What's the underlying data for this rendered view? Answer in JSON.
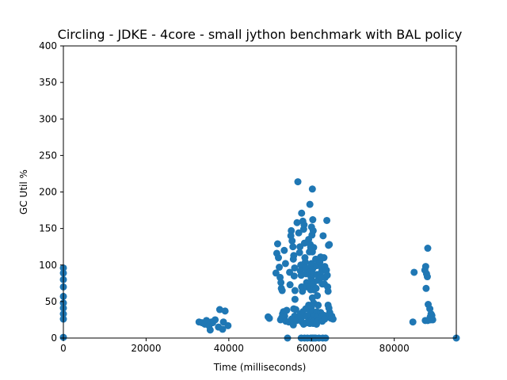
{
  "chart_data": {
    "type": "scatter",
    "title": "Circling - JDKE - 4core -  small jython benchmark with BAL policy",
    "xlabel": "Time (milliseconds)",
    "ylabel": "GC Util %",
    "xlim": [
      0,
      95000
    ],
    "ylim": [
      0,
      400
    ],
    "xticks": [
      0,
      20000,
      40000,
      60000,
      80000
    ],
    "yticks": [
      0,
      50,
      100,
      150,
      200,
      250,
      300,
      350,
      400
    ],
    "grid": false,
    "legend": "none",
    "colors": {
      "points": "#1f77b4",
      "axes": "#000000",
      "background": "#ffffff"
    },
    "series": [
      {
        "points": [
          [
            0,
            96
          ],
          [
            0,
            89
          ],
          [
            0,
            80
          ],
          [
            0,
            70
          ],
          [
            0,
            57
          ],
          [
            0,
            48
          ],
          [
            0,
            41
          ],
          [
            0,
            33
          ],
          [
            0,
            26
          ],
          [
            0,
            1
          ],
          [
            32800,
            22
          ],
          [
            33500,
            21
          ],
          [
            34200,
            19
          ],
          [
            34600,
            24
          ],
          [
            35200,
            17
          ],
          [
            35500,
            11
          ],
          [
            35800,
            22
          ],
          [
            36100,
            21
          ],
          [
            36700,
            25
          ],
          [
            37500,
            15
          ],
          [
            37800,
            39
          ],
          [
            38500,
            12
          ],
          [
            38700,
            22
          ],
          [
            39100,
            37
          ],
          [
            39800,
            17
          ],
          [
            49500,
            29
          ],
          [
            49800,
            27
          ],
          [
            51400,
            89
          ],
          [
            51600,
            116
          ],
          [
            51800,
            129
          ],
          [
            52000,
            110
          ],
          [
            52200,
            97
          ],
          [
            52400,
            83
          ],
          [
            52600,
            76
          ],
          [
            52700,
            68
          ],
          [
            52900,
            65
          ],
          [
            52500,
            25
          ],
          [
            52800,
            28
          ],
          [
            53000,
            33
          ],
          [
            53400,
            120
          ],
          [
            53700,
            102
          ],
          [
            53200,
            36
          ],
          [
            53500,
            30
          ],
          [
            53800,
            23
          ],
          [
            54000,
            38
          ],
          [
            54200,
            0
          ],
          [
            54500,
            22
          ],
          [
            54700,
            90
          ],
          [
            54800,
            73
          ],
          [
            55000,
            140
          ],
          [
            55100,
            147
          ],
          [
            55300,
            133
          ],
          [
            55500,
            125
          ],
          [
            55700,
            113
          ],
          [
            55600,
            108
          ],
          [
            55800,
            85
          ],
          [
            55900,
            96
          ],
          [
            56000,
            65
          ],
          [
            55700,
            40
          ],
          [
            55900,
            30
          ],
          [
            55400,
            22
          ],
          [
            55200,
            26
          ],
          [
            55600,
            18
          ],
          [
            56000,
            53
          ],
          [
            56200,
            39
          ],
          [
            56400,
            24
          ],
          [
            56700,
            214
          ],
          [
            56500,
            158
          ],
          [
            56900,
            144
          ],
          [
            57200,
            125
          ],
          [
            57100,
            117
          ],
          [
            57400,
            100
          ],
          [
            57300,
            92
          ],
          [
            57500,
            86
          ],
          [
            57600,
            70
          ],
          [
            57800,
            64
          ],
          [
            57300,
            33
          ],
          [
            57500,
            28
          ],
          [
            57700,
            22
          ],
          [
            57900,
            36
          ],
          [
            58100,
            19
          ],
          [
            57600,
            171
          ],
          [
            57900,
            160
          ],
          [
            58200,
            155
          ],
          [
            58100,
            149
          ],
          [
            58300,
            130
          ],
          [
            58400,
            110
          ],
          [
            58500,
            104
          ],
          [
            58600,
            96
          ],
          [
            58700,
            88
          ],
          [
            58800,
            76
          ],
          [
            58900,
            70
          ],
          [
            58600,
            40
          ],
          [
            58800,
            30
          ],
          [
            58900,
            21
          ],
          [
            57500,
            0
          ],
          [
            58300,
            0
          ],
          [
            59000,
            0
          ],
          [
            59600,
            183
          ],
          [
            59300,
            135
          ],
          [
            59500,
            118
          ],
          [
            59700,
            128
          ],
          [
            59800,
            124
          ],
          [
            59400,
            96
          ],
          [
            59600,
            90
          ],
          [
            59900,
            83
          ],
          [
            59500,
            70
          ],
          [
            59800,
            66
          ],
          [
            59300,
            45
          ],
          [
            59500,
            38
          ],
          [
            59700,
            31
          ],
          [
            59900,
            25
          ],
          [
            59600,
            20
          ],
          [
            60200,
            204
          ],
          [
            60000,
            152
          ],
          [
            60100,
            141
          ],
          [
            60300,
            162
          ],
          [
            60400,
            147
          ],
          [
            60500,
            124
          ],
          [
            60200,
            118
          ],
          [
            60000,
            102
          ],
          [
            60300,
            95
          ],
          [
            60500,
            87
          ],
          [
            60100,
            78
          ],
          [
            60400,
            74
          ],
          [
            60600,
            66
          ],
          [
            60200,
            55
          ],
          [
            60500,
            48
          ],
          [
            60000,
            43
          ],
          [
            60300,
            36
          ],
          [
            60600,
            30
          ],
          [
            60100,
            25
          ],
          [
            60400,
            20
          ],
          [
            60700,
            24
          ],
          [
            59800,
            0
          ],
          [
            60200,
            0
          ],
          [
            60600,
            0
          ],
          [
            61000,
            0
          ],
          [
            61000,
            108
          ],
          [
            61200,
            99
          ],
          [
            61300,
            87
          ],
          [
            61500,
            79
          ],
          [
            61100,
            68
          ],
          [
            61400,
            58
          ],
          [
            61600,
            45
          ],
          [
            61300,
            36
          ],
          [
            61500,
            30
          ],
          [
            61700,
            24
          ],
          [
            61200,
            19
          ],
          [
            61800,
            0
          ],
          [
            62000,
            104
          ],
          [
            62200,
            111
          ],
          [
            62400,
            97
          ],
          [
            62100,
            88
          ],
          [
            62300,
            83
          ],
          [
            62500,
            92
          ],
          [
            62600,
            74
          ],
          [
            62200,
            35
          ],
          [
            62400,
            29
          ],
          [
            62600,
            23
          ],
          [
            62800,
            140
          ],
          [
            63000,
            110
          ],
          [
            63200,
            98
          ],
          [
            63300,
            83
          ],
          [
            63100,
            74
          ],
          [
            63000,
            31
          ],
          [
            63200,
            26
          ],
          [
            62700,
            0
          ],
          [
            63400,
            0
          ],
          [
            63700,
            161
          ],
          [
            63600,
            93
          ],
          [
            63800,
            86
          ],
          [
            63900,
            70
          ],
          [
            64000,
            64
          ],
          [
            64100,
            127
          ],
          [
            64300,
            128
          ],
          [
            64000,
            45
          ],
          [
            64200,
            41
          ],
          [
            64400,
            35
          ],
          [
            64500,
            29
          ],
          [
            64700,
            27
          ],
          [
            64900,
            30
          ],
          [
            65200,
            26
          ],
          [
            84500,
            22
          ],
          [
            84800,
            90
          ],
          [
            87400,
            93
          ],
          [
            87600,
            98
          ],
          [
            87800,
            88
          ],
          [
            88000,
            84
          ],
          [
            87700,
            68
          ],
          [
            88100,
            123
          ],
          [
            88200,
            46
          ],
          [
            88600,
            40
          ],
          [
            88900,
            33
          ],
          [
            88700,
            29
          ],
          [
            89100,
            31
          ],
          [
            87500,
            24
          ],
          [
            88100,
            24
          ],
          [
            88800,
            25
          ],
          [
            89300,
            25
          ],
          [
            95000,
            0
          ]
        ]
      }
    ]
  }
}
